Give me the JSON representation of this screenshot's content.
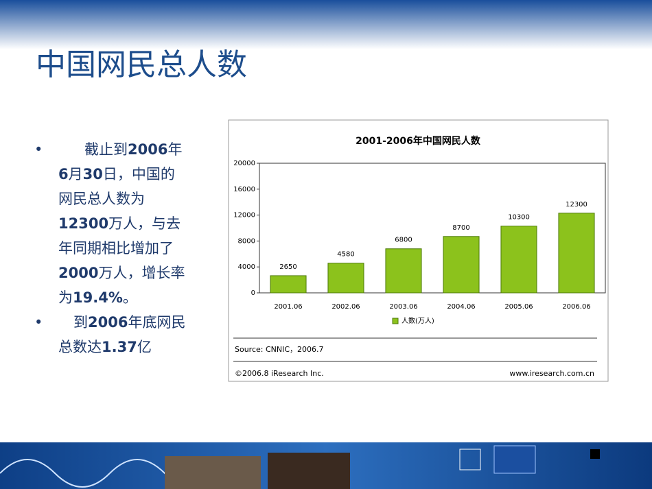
{
  "slide": {
    "title": "中国网民总人数",
    "bullets": [
      [
        {
          "text": "截止到",
          "bold": false
        },
        {
          "text": "2006",
          "bold": true
        },
        {
          "text": "年",
          "bold": false
        },
        {
          "text": "6",
          "bold": true
        },
        {
          "text": "月",
          "bold": false
        },
        {
          "text": "30",
          "bold": true
        },
        {
          "text": "日，中国的网民总人数为",
          "bold": false
        },
        {
          "text": "12300",
          "bold": true
        },
        {
          "text": "万人，与去年同期相比增加了",
          "bold": false
        },
        {
          "text": "2000",
          "bold": true
        },
        {
          "text": "万人，增长率为",
          "bold": false
        },
        {
          "text": "19.4%",
          "bold": true
        },
        {
          "text": "。",
          "bold": false
        }
      ],
      [
        {
          "text": "到",
          "bold": false
        },
        {
          "text": "2006",
          "bold": true
        },
        {
          "text": "年底网民总数达",
          "bold": false
        },
        {
          "text": "1.37",
          "bold": true
        },
        {
          "text": "亿",
          "bold": false
        }
      ]
    ]
  },
  "chart_data": {
    "type": "bar",
    "title": "2001-2006年中国网民人数",
    "categories": [
      "2001.06",
      "2002.06",
      "2003.06",
      "2004.06",
      "2005.06",
      "2006.06"
    ],
    "series": [
      {
        "name": "人数(万人)",
        "color": "#8cc21c",
        "values": [
          2650,
          4580,
          6800,
          8700,
          10300,
          12300
        ]
      }
    ],
    "ylim": [
      0,
      20000
    ],
    "yticks": [
      0,
      4000,
      8000,
      12000,
      16000,
      20000
    ],
    "grid": false,
    "legend": "bottom",
    "source": "Source: CNNIC，2006.7",
    "footer_left": "©2006.8 iResearch Inc.",
    "footer_right": "www.iresearch.com.cn"
  }
}
